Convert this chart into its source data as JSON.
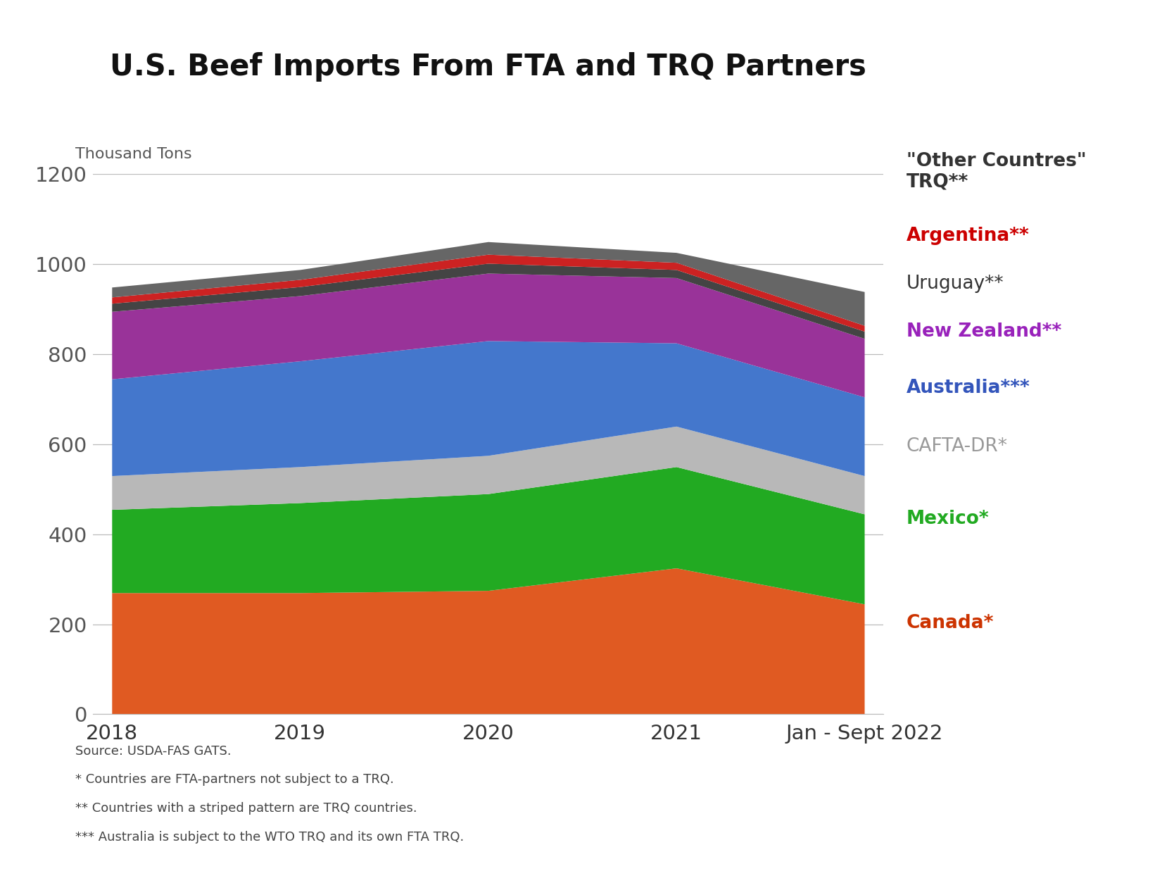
{
  "title": "U.S. Beef Imports From FTA and TRQ Partners",
  "ylabel": "Thousand Tons",
  "x_positions": [
    0,
    1,
    2,
    3,
    4
  ],
  "x_labels": [
    "2018",
    "2019",
    "2020",
    "2021",
    "Jan - Sept 2022"
  ],
  "ylim": [
    0,
    1200
  ],
  "yticks": [
    0,
    200,
    400,
    600,
    800,
    1000,
    1200
  ],
  "canada": [
    270,
    270,
    275,
    325,
    245
  ],
  "mexico": [
    185,
    200,
    215,
    225,
    200
  ],
  "cafta": [
    75,
    80,
    85,
    90,
    85
  ],
  "australia": [
    215,
    235,
    255,
    185,
    175
  ],
  "nz": [
    150,
    145,
    150,
    145,
    130
  ],
  "uruguay": [
    18,
    20,
    22,
    18,
    16
  ],
  "argentina": [
    14,
    16,
    20,
    16,
    13
  ],
  "other_trq": [
    22,
    22,
    28,
    22,
    75
  ],
  "series_colors": [
    "#e05a22",
    "#22aa22",
    "#b8b8b8",
    "#4477cc",
    "#993399",
    "#444444",
    "#cc2222",
    "#666666"
  ],
  "legend_labels": [
    "\"Other Countres\"\nTRQ**",
    "Argentina**",
    "Uruguay**",
    "New Zealand**",
    "Australia***",
    "CAFTA-DR*",
    "Mexico*",
    "Canada*"
  ],
  "legend_colors": [
    "#333333",
    "#cc0000",
    "#333333",
    "#9922bb",
    "#3355bb",
    "#999999",
    "#22aa22",
    "#cc3300"
  ],
  "legend_bold": [
    true,
    true,
    false,
    true,
    true,
    false,
    true,
    true
  ],
  "footnotes": [
    "Source: USDA-FAS GATS.",
    "* Countries are FTA-partners not subject to a TRQ.",
    "** Countries with a striped pattern are TRQ countries.",
    "*** Australia is subject to the WTO TRQ and its own FTA TRQ."
  ],
  "background_color": "#ffffff"
}
